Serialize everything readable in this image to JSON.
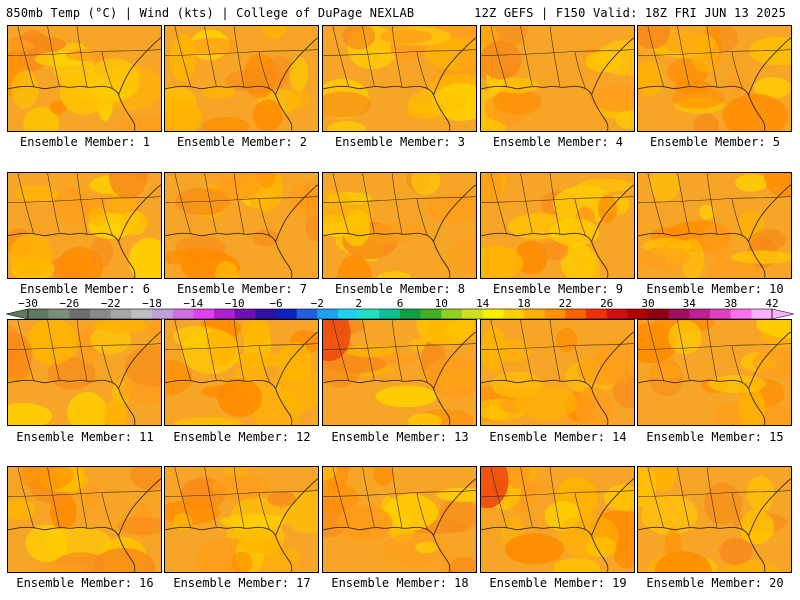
{
  "header": {
    "left": "850mb Temp (°C) | Wind (kts) | College of DuPage NEXLAB",
    "right": "12Z GEFS | F150 Valid: 18Z FRI JUN 13 2025"
  },
  "members": [
    "Ensemble Member: 1",
    "Ensemble Member: 2",
    "Ensemble Member: 3",
    "Ensemble Member: 4",
    "Ensemble Member: 5",
    "Ensemble Member: 6",
    "Ensemble Member: 7",
    "Ensemble Member: 8",
    "Ensemble Member: 9",
    "Ensemble Member: 10",
    "Ensemble Member: 11",
    "Ensemble Member: 12",
    "Ensemble Member: 13",
    "Ensemble Member: 14",
    "Ensemble Member: 15",
    "Ensemble Member: 16",
    "Ensemble Member: 17",
    "Ensemble Member: 18",
    "Ensemble Member: 19",
    "Ensemble Member: 20"
  ],
  "colorbar": {
    "ticks": [
      "−30",
      "−26",
      "−22",
      "−18",
      "−14",
      "−10",
      "−6",
      "−2",
      "2",
      "6",
      "10",
      "14",
      "18",
      "22",
      "26",
      "30",
      "34",
      "38",
      "42"
    ],
    "colors": [
      "#5f7a5f",
      "#7a8f7a",
      "#6f6f6f",
      "#8a8a8a",
      "#a6a6a6",
      "#bfbfbf",
      "#c0a0d8",
      "#d070e0",
      "#e040f0",
      "#b020d0",
      "#7010b0",
      "#3010a0",
      "#1020c0",
      "#2060e0",
      "#20a0f0",
      "#20d0f0",
      "#20e0c0",
      "#10c090",
      "#10a040",
      "#40b020",
      "#90d020",
      "#d0e020",
      "#f8f000",
      "#ffd000",
      "#ffb000",
      "#ff9000",
      "#ff6000",
      "#f03000",
      "#d01010",
      "#b00000",
      "#900010",
      "#a01060",
      "#c02090",
      "#e040c0",
      "#ff70f0",
      "#ffb0ff"
    ]
  }
}
